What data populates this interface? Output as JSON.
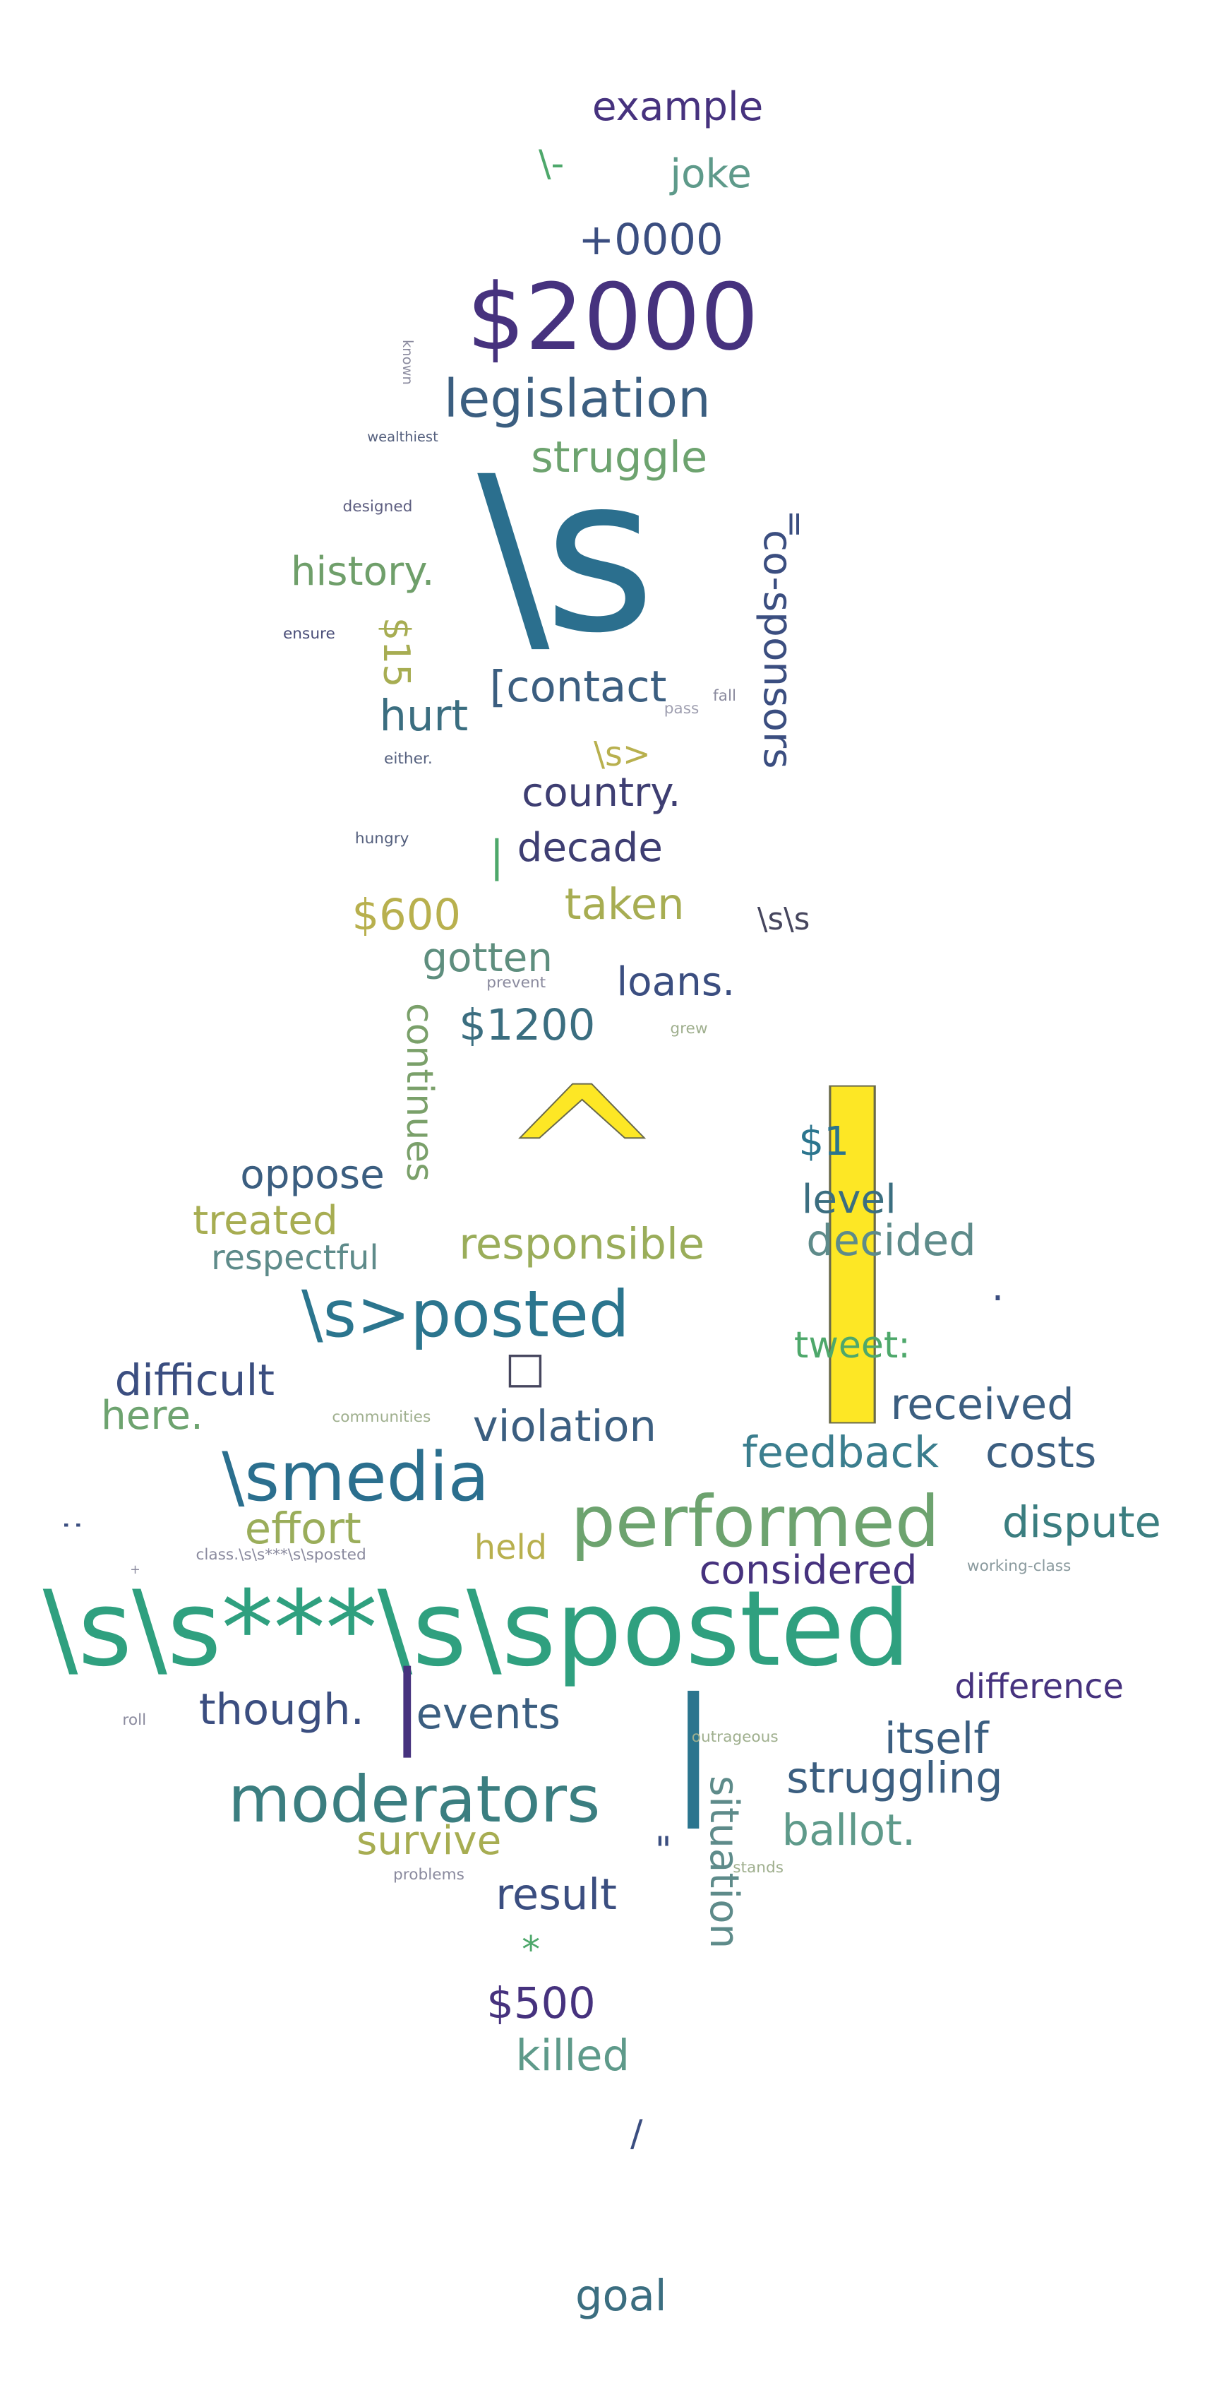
{
  "palette": {
    "dark_purple": "#46327e",
    "navy": "#365c8d",
    "slate": "#3b4e80",
    "steel": "#2b758e",
    "teal": "#21918c",
    "sea_green": "#2fa07f",
    "green": "#4ea86b",
    "olive_green": "#7ea95f",
    "olive": "#a7ad52",
    "khaki": "#b8b04e",
    "yellow": "#fde725",
    "grey_teal": "#5e8b8a",
    "muted_purple": "#4b4a78"
  },
  "words": [
    {
      "text": "example",
      "color": "#46327e"
    },
    {
      "text": "joke",
      "color": "#5e9a8a"
    },
    {
      "text": "\\-",
      "color": "#4ea86b"
    },
    {
      "text": "+0000",
      "color": "#3b4e80"
    },
    {
      "text": "$2000",
      "color": "#46327e"
    },
    {
      "text": "known",
      "color": "#8a8a9e"
    },
    {
      "text": "legislation",
      "color": "#3b5e80"
    },
    {
      "text": "wealthiest",
      "color": "#55607e"
    },
    {
      "text": "struggle",
      "color": "#6da36f"
    },
    {
      "text": "\\s",
      "color": "#2b6f8e"
    },
    {
      "text": "designed",
      "color": "#5d5e80"
    },
    {
      "text": "=",
      "color": "#3b4e80"
    },
    {
      "text": "history.",
      "color": "#6f9f6a"
    },
    {
      "text": "co-sponsors",
      "color": "#3b4e80"
    },
    {
      "text": "ensure",
      "color": "#4a4e78"
    },
    {
      "text": "$15",
      "color": "#a7ad52"
    },
    {
      "text": "[contact",
      "color": "#3b5e80"
    },
    {
      "text": "hurt",
      "color": "#3b6e80"
    },
    {
      "text": "pass",
      "color": "#9f9fb0"
    },
    {
      "text": "fall",
      "color": "#8a8a9e"
    },
    {
      "text": "\\s>",
      "color": "#b8b04e"
    },
    {
      "text": "either.",
      "color": "#55607e"
    },
    {
      "text": "country.",
      "color": "#3e3e72"
    },
    {
      "text": "hungry",
      "color": "#55607e"
    },
    {
      "text": "decade",
      "color": "#3e3e72"
    },
    {
      "text": "|",
      "color": "#4ea86b"
    },
    {
      "text": "$600",
      "color": "#b8b04e"
    },
    {
      "text": "taken",
      "color": "#a7ad52"
    },
    {
      "text": "\\s\\s",
      "color": "#46465e"
    },
    {
      "text": "gotten",
      "color": "#5e8e7e"
    },
    {
      "text": "prevent",
      "color": "#8a8a9e"
    },
    {
      "text": "loans.",
      "color": "#3b4e80"
    },
    {
      "text": "$1200",
      "color": "#3b6e80"
    },
    {
      "text": "grew",
      "color": "#9faf8e"
    },
    {
      "text": "continues",
      "color": "#7aa06a"
    },
    {
      "text": "^",
      "color": "#fde725"
    },
    {
      "text": "|",
      "color": "#fde725"
    },
    {
      "text": "$1",
      "color": "#2b758e"
    },
    {
      "text": "oppose",
      "color": "#3b5e80"
    },
    {
      "text": "level",
      "color": "#3b6e80"
    },
    {
      "text": "treated",
      "color": "#a7ad52"
    },
    {
      "text": "decided",
      "color": "#5e8b8a"
    },
    {
      "text": "respectful",
      "color": "#5e8b8a"
    },
    {
      "text": "responsible",
      "color": "#9aad5a"
    },
    {
      "text": ".",
      "color": "#3b4e80"
    },
    {
      "text": "\\s>posted",
      "color": "#2b758e"
    },
    {
      "text": "□",
      "color": "#46465e"
    },
    {
      "text": "tweet:",
      "color": "#4ea86b"
    },
    {
      "text": "difficult",
      "color": "#3b4e80"
    },
    {
      "text": "received",
      "color": "#3b5e80"
    },
    {
      "text": "here.",
      "color": "#6da36f"
    },
    {
      "text": "communities",
      "color": "#9faf8e"
    },
    {
      "text": "violation",
      "color": "#3b5e80"
    },
    {
      "text": "feedback",
      "color": "#3b7e8e"
    },
    {
      "text": "costs",
      "color": "#3b5e80"
    },
    {
      "text": "\\smedia",
      "color": "#2b6f8e"
    },
    {
      "text": "performed",
      "color": "#6da36f"
    },
    {
      "text": "effort",
      "color": "#9aad5a"
    },
    {
      "text": "dispute",
      "color": "#3b7e80"
    },
    {
      "text": ":",
      "color": "#3b4e80"
    },
    {
      "text": "held",
      "color": "#b8b04e"
    },
    {
      "text": "class.\\s\\s***\\s\\sposted",
      "color": "#8a8a9e"
    },
    {
      "text": "considered",
      "color": "#46327e"
    },
    {
      "text": "working-class",
      "color": "#8a9a9e"
    },
    {
      "text": "+",
      "color": "#8a8a9e"
    },
    {
      "text": "\\s\\s***\\s\\sposted",
      "color": "#2fa07f"
    },
    {
      "text": "difference",
      "color": "#46327e"
    },
    {
      "text": "roll",
      "color": "#8a8a9e"
    },
    {
      "text": "though.",
      "color": "#3b4e80"
    },
    {
      "text": "|",
      "color": "#46327e"
    },
    {
      "text": "events",
      "color": "#3b5e80"
    },
    {
      "text": "|",
      "color": "#2b758e"
    },
    {
      "text": "outrageous",
      "color": "#9faf8e"
    },
    {
      "text": "itself",
      "color": "#3b5e80"
    },
    {
      "text": "moderators",
      "color": "#3b7e80"
    },
    {
      "text": "struggling",
      "color": "#3b5e80"
    },
    {
      "text": "situation",
      "color": "#5e8b8a"
    },
    {
      "text": "ballot.",
      "color": "#5e9a8a"
    },
    {
      "text": "survive",
      "color": "#a7ad52"
    },
    {
      "text": "\"",
      "color": "#3b4e80"
    },
    {
      "text": "problems",
      "color": "#8a8a9e"
    },
    {
      "text": "stands",
      "color": "#9faf8e"
    },
    {
      "text": "result",
      "color": "#3b4e80"
    },
    {
      "text": "*",
      "color": "#4ea86b"
    },
    {
      "text": "$500",
      "color": "#46327e"
    },
    {
      "text": "killed",
      "color": "#5e9a8a"
    },
    {
      "text": "/",
      "color": "#3b4e80"
    },
    {
      "text": "goal",
      "color": "#3b6e80"
    }
  ]
}
